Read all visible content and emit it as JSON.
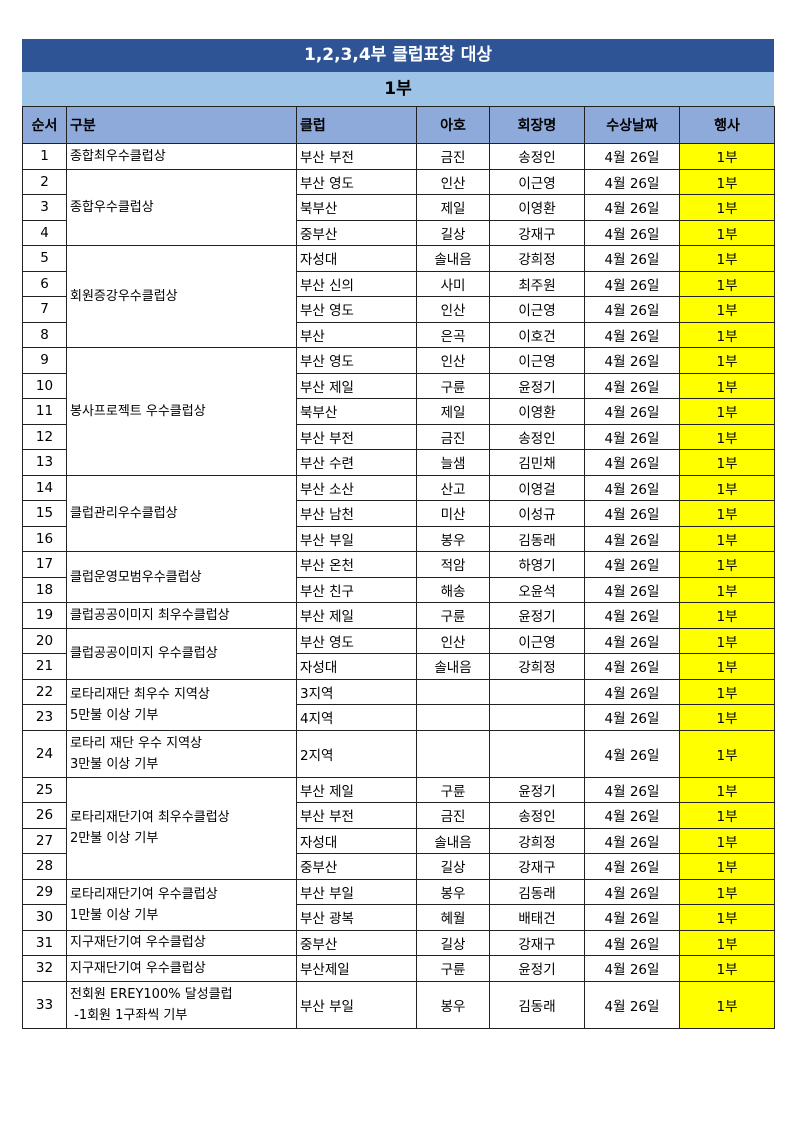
{
  "title": "1,2,3,4부 클럽표창 대상",
  "subtitle": "1부",
  "colors": {
    "title_bg": "#2f5496",
    "subtitle_bg": "#9dc3e6",
    "header_bg": "#8eaadb",
    "event_highlight": "#ffff00"
  },
  "headers": [
    "순서",
    "구분",
    "클럽",
    "아호",
    "회장명",
    "수상날짜",
    "행사"
  ],
  "categories": [
    {
      "start": 1,
      "span": 1,
      "lines": [
        "종합최우수클럽상"
      ]
    },
    {
      "start": 2,
      "span": 3,
      "lines": [
        "종합우수클럽상"
      ]
    },
    {
      "start": 5,
      "span": 4,
      "lines": [
        "회원증강우수클럽상"
      ]
    },
    {
      "start": 9,
      "span": 5,
      "lines": [
        "봉사프로젝트 우수클럽상"
      ]
    },
    {
      "start": 14,
      "span": 3,
      "lines": [
        "클럽관리우수클럽상"
      ]
    },
    {
      "start": 17,
      "span": 2,
      "lines": [
        "클럽운영모범우수클럽상"
      ]
    },
    {
      "start": 19,
      "span": 1,
      "lines": [
        "클럽공공이미지 최우수클럽상"
      ]
    },
    {
      "start": 20,
      "span": 2,
      "lines": [
        "클럽공공이미지 우수클럽상"
      ]
    },
    {
      "start": 22,
      "span": 2,
      "lines": [
        "로타리재단 최우수 지역상",
        "5만불 이상 기부"
      ]
    },
    {
      "start": 24,
      "span": 1,
      "lines": [
        "로타리 재단 우수 지역상",
        "3만불 이상 기부"
      ]
    },
    {
      "start": 25,
      "span": 4,
      "lines": [
        "로타리재단기여 최우수클럽상",
        "2만불 이상 기부"
      ]
    },
    {
      "start": 29,
      "span": 2,
      "lines": [
        "로타리재단기여 우수클럽상",
        "1만불 이상 기부"
      ]
    },
    {
      "start": 31,
      "span": 1,
      "lines": [
        "지구재단기여 우수클럽상"
      ]
    },
    {
      "start": 32,
      "span": 1,
      "lines": [
        "지구재단기여 우수클럽상"
      ]
    },
    {
      "start": 33,
      "span": 1,
      "lines": [
        "전회원 EREY100% 달성클럽",
        " -1회원 1구좌씩 기부"
      ]
    }
  ],
  "rows": [
    {
      "no": "1",
      "club": "부산 부전",
      "aho": "금진",
      "name": "송정인",
      "date": "4월 26일",
      "event": "1부"
    },
    {
      "no": "2",
      "club": "부산 영도",
      "aho": "인산",
      "name": "이근영",
      "date": "4월 26일",
      "event": "1부"
    },
    {
      "no": "3",
      "club": "북부산",
      "aho": "제일",
      "name": "이영환",
      "date": "4월 26일",
      "event": "1부"
    },
    {
      "no": "4",
      "club": "중부산",
      "aho": "길상",
      "name": "강재구",
      "date": "4월 26일",
      "event": "1부"
    },
    {
      "no": "5",
      "club": "자성대",
      "aho": "솔내음",
      "name": "강희정",
      "date": "4월 26일",
      "event": "1부"
    },
    {
      "no": "6",
      "club": "부산 신의",
      "aho": "사미",
      "name": "최주원",
      "date": "4월 26일",
      "event": "1부"
    },
    {
      "no": "7",
      "club": "부산 영도",
      "aho": "인산",
      "name": "이근영",
      "date": "4월 26일",
      "event": "1부"
    },
    {
      "no": "8",
      "club": "부산",
      "aho": "은곡",
      "name": "이호건",
      "date": "4월 26일",
      "event": "1부"
    },
    {
      "no": "9",
      "club": "부산 영도",
      "aho": "인산",
      "name": "이근영",
      "date": "4월 26일",
      "event": "1부"
    },
    {
      "no": "10",
      "club": "부산 제일",
      "aho": "구륜",
      "name": "윤정기",
      "date": "4월 26일",
      "event": "1부"
    },
    {
      "no": "11",
      "club": "북부산",
      "aho": "제일",
      "name": "이영환",
      "date": "4월 26일",
      "event": "1부"
    },
    {
      "no": "12",
      "club": "부산 부전",
      "aho": "금진",
      "name": "송정인",
      "date": "4월 26일",
      "event": "1부"
    },
    {
      "no": "13",
      "club": "부산 수련",
      "aho": "늘샘",
      "name": "김민채",
      "date": "4월 26일",
      "event": "1부"
    },
    {
      "no": "14",
      "club": "부산 소산",
      "aho": "산고",
      "name": "이영걸",
      "date": "4월 26일",
      "event": "1부"
    },
    {
      "no": "15",
      "club": "부산 남천",
      "aho": "미산",
      "name": "이성규",
      "date": "4월 26일",
      "event": "1부"
    },
    {
      "no": "16",
      "club": "부산 부일",
      "aho": "봉우",
      "name": "김동래",
      "date": "4월 26일",
      "event": "1부"
    },
    {
      "no": "17",
      "club": "부산 온천",
      "aho": "적암",
      "name": "하영기",
      "date": "4월 26일",
      "event": "1부"
    },
    {
      "no": "18",
      "club": "부산 친구",
      "aho": "해송",
      "name": "오윤석",
      "date": "4월 26일",
      "event": "1부"
    },
    {
      "no": "19",
      "club": "부산 제일",
      "aho": "구륜",
      "name": "윤정기",
      "date": "4월 26일",
      "event": "1부"
    },
    {
      "no": "20",
      "club": "부산 영도",
      "aho": "인산",
      "name": "이근영",
      "date": "4월 26일",
      "event": "1부"
    },
    {
      "no": "21",
      "club": "자성대",
      "aho": "솔내음",
      "name": "강희정",
      "date": "4월 26일",
      "event": "1부"
    },
    {
      "no": "22",
      "club": "3지역",
      "aho": "",
      "name": "",
      "date": "4월 26일",
      "event": "1부"
    },
    {
      "no": "23",
      "club": "4지역",
      "aho": "",
      "name": "",
      "date": "4월 26일",
      "event": "1부"
    },
    {
      "no": "24",
      "club": "2지역",
      "aho": "",
      "name": "",
      "date": "4월 26일",
      "event": "1부"
    },
    {
      "no": "25",
      "club": "부산 제일",
      "aho": "구륜",
      "name": "윤정기",
      "date": "4월 26일",
      "event": "1부"
    },
    {
      "no": "26",
      "club": "부산 부전",
      "aho": "금진",
      "name": "송정인",
      "date": "4월 26일",
      "event": "1부"
    },
    {
      "no": "27",
      "club": "자성대",
      "aho": "솔내음",
      "name": "강희정",
      "date": "4월 26일",
      "event": "1부"
    },
    {
      "no": "28",
      "club": "중부산",
      "aho": "길상",
      "name": "강재구",
      "date": "4월 26일",
      "event": "1부"
    },
    {
      "no": "29",
      "club": "부산 부일",
      "aho": "봉우",
      "name": "김동래",
      "date": "4월 26일",
      "event": "1부"
    },
    {
      "no": "30",
      "club": "부산 광복",
      "aho": "혜월",
      "name": "배태건",
      "date": "4월 26일",
      "event": "1부"
    },
    {
      "no": "31",
      "club": "중부산",
      "aho": "길상",
      "name": "강재구",
      "date": "4월 26일",
      "event": "1부"
    },
    {
      "no": "32",
      "club": "부산제일",
      "aho": "구륜",
      "name": "윤정기",
      "date": "4월 26일",
      "event": "1부"
    },
    {
      "no": "33",
      "club": "부산 부일",
      "aho": "봉우",
      "name": "김동래",
      "date": "4월 26일",
      "event": "1부"
    }
  ]
}
